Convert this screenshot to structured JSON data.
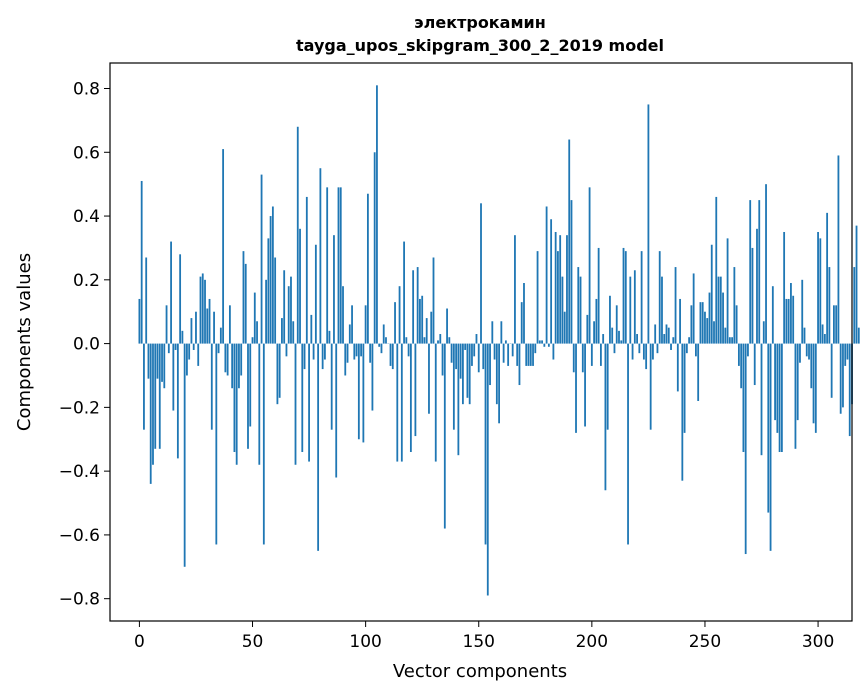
{
  "chart_data": {
    "type": "bar",
    "title": "электрокамин",
    "subtitle": "tayga_upos_skipgram_300_2_2019 model",
    "xlabel": "Vector components",
    "ylabel": "Components values",
    "xlim": [
      -13,
      315
    ],
    "ylim": [
      -0.87,
      0.88
    ],
    "x_ticks": [
      0,
      50,
      100,
      150,
      200,
      250,
      300
    ],
    "y_ticks": [
      -0.8,
      -0.6,
      -0.4,
      -0.2,
      0.0,
      0.2,
      0.4,
      0.6,
      0.8
    ],
    "x_tick_labels": [
      "0",
      "50",
      "100",
      "150",
      "200",
      "250",
      "300"
    ],
    "y_tick_labels": [
      "−0.8",
      "−0.6",
      "−0.4",
      "−0.2",
      "0.0",
      "0.2",
      "0.4",
      "0.6",
      "0.8"
    ],
    "bar_color": "#1f77b4",
    "grid": false,
    "series": [
      {
        "values": [
          0.14,
          0.51,
          -0.27,
          0.27,
          -0.11,
          -0.44,
          -0.38,
          -0.33,
          -0.11,
          -0.33,
          -0.12,
          -0.14,
          0.12,
          -0.03,
          0.32,
          -0.21,
          -0.02,
          -0.36,
          0.28,
          0.04,
          -0.7,
          -0.1,
          -0.05,
          0.08,
          -0.02,
          0.1,
          -0.07,
          0.21,
          0.22,
          0.2,
          0.11,
          0.14,
          -0.27,
          0.1,
          -0.63,
          -0.03,
          0.05,
          0.61,
          -0.09,
          -0.1,
          0.12,
          -0.14,
          -0.34,
          -0.38,
          -0.14,
          -0.1,
          0.29,
          0.25,
          -0.33,
          -0.26,
          0.02,
          0.16,
          0.07,
          -0.38,
          0.53,
          -0.63,
          0.2,
          0.33,
          0.4,
          0.43,
          0.27,
          -0.19,
          -0.17,
          0.08,
          0.23,
          -0.04,
          0.18,
          0.21,
          0.07,
          -0.38,
          0.68,
          0.36,
          -0.34,
          -0.08,
          0.46,
          -0.37,
          0.09,
          -0.05,
          0.31,
          -0.65,
          0.55,
          -0.08,
          -0.05,
          0.49,
          0.04,
          -0.27,
          0.34,
          -0.42,
          0.49,
          0.49,
          0.18,
          -0.1,
          -0.06,
          0.06,
          0.12,
          -0.05,
          -0.04,
          -0.3,
          -0.04,
          -0.31,
          0.12,
          0.47,
          -0.06,
          -0.21,
          0.6,
          0.81,
          -0.01,
          -0.03,
          0.06,
          0.02,
          0.0,
          -0.07,
          -0.08,
          0.13,
          -0.37,
          0.18,
          -0.37,
          0.32,
          0.02,
          -0.04,
          -0.34,
          0.23,
          -0.29,
          0.24,
          0.14,
          0.15,
          0.02,
          0.08,
          -0.22,
          0.1,
          0.27,
          -0.37,
          0.01,
          0.03,
          -0.1,
          -0.58,
          0.11,
          0.02,
          -0.06,
          -0.27,
          -0.08,
          -0.35,
          -0.11,
          -0.19,
          -0.02,
          -0.17,
          -0.19,
          -0.07,
          -0.04,
          0.03,
          -0.09,
          0.44,
          -0.08,
          -0.63,
          -0.79,
          -0.13,
          0.07,
          -0.05,
          -0.19,
          -0.25,
          0.07,
          -0.06,
          0.01,
          -0.07,
          0.0,
          -0.04,
          0.34,
          -0.07,
          -0.13,
          0.13,
          0.19,
          -0.07,
          -0.07,
          -0.07,
          -0.07,
          -0.03,
          0.29,
          0.01,
          0.01,
          -0.01,
          0.43,
          -0.01,
          0.39,
          -0.05,
          0.35,
          0.29,
          0.34,
          0.21,
          0.1,
          0.34,
          0.64,
          0.45,
          -0.09,
          -0.28,
          0.24,
          0.21,
          -0.09,
          -0.26,
          0.09,
          0.49,
          -0.07,
          0.07,
          0.14,
          0.3,
          -0.07,
          0.03,
          -0.46,
          -0.27,
          0.15,
          0.05,
          -0.03,
          0.12,
          0.04,
          0.01,
          0.3,
          0.29,
          -0.63,
          0.21,
          -0.05,
          0.23,
          0.03,
          -0.03,
          0.29,
          -0.05,
          -0.08,
          0.75,
          -0.27,
          -0.05,
          0.06,
          -0.03,
          0.29,
          0.21,
          0.03,
          0.06,
          0.05,
          -0.02,
          0.02,
          0.24,
          -0.15,
          0.14,
          -0.43,
          -0.28,
          -0.03,
          0.02,
          0.12,
          0.22,
          -0.04,
          -0.18,
          0.13,
          0.13,
          0.1,
          0.08,
          0.16,
          0.31,
          0.07,
          0.46,
          0.21,
          0.21,
          0.16,
          0.05,
          0.33,
          0.02,
          0.02,
          0.24,
          0.12,
          -0.07,
          -0.14,
          -0.34,
          -0.66,
          -0.04,
          0.45,
          0.3,
          -0.13,
          0.36,
          0.45,
          -0.35,
          0.07,
          0.5,
          -0.53,
          -0.65,
          0.18,
          -0.24,
          -0.28,
          -0.34,
          -0.34,
          0.35,
          0.14,
          0.14,
          0.19,
          0.15,
          -0.33,
          -0.24,
          -0.06,
          0.2,
          0.05,
          -0.04,
          -0.05,
          -0.14,
          -0.25,
          -0.28,
          0.35,
          0.33,
          0.06,
          0.03,
          0.41,
          0.24,
          -0.17,
          0.12,
          0.12,
          0.59,
          -0.22,
          -0.2,
          -0.07,
          -0.05,
          -0.29,
          -0.19,
          0.24,
          0.37,
          0.05
        ]
      }
    ]
  }
}
